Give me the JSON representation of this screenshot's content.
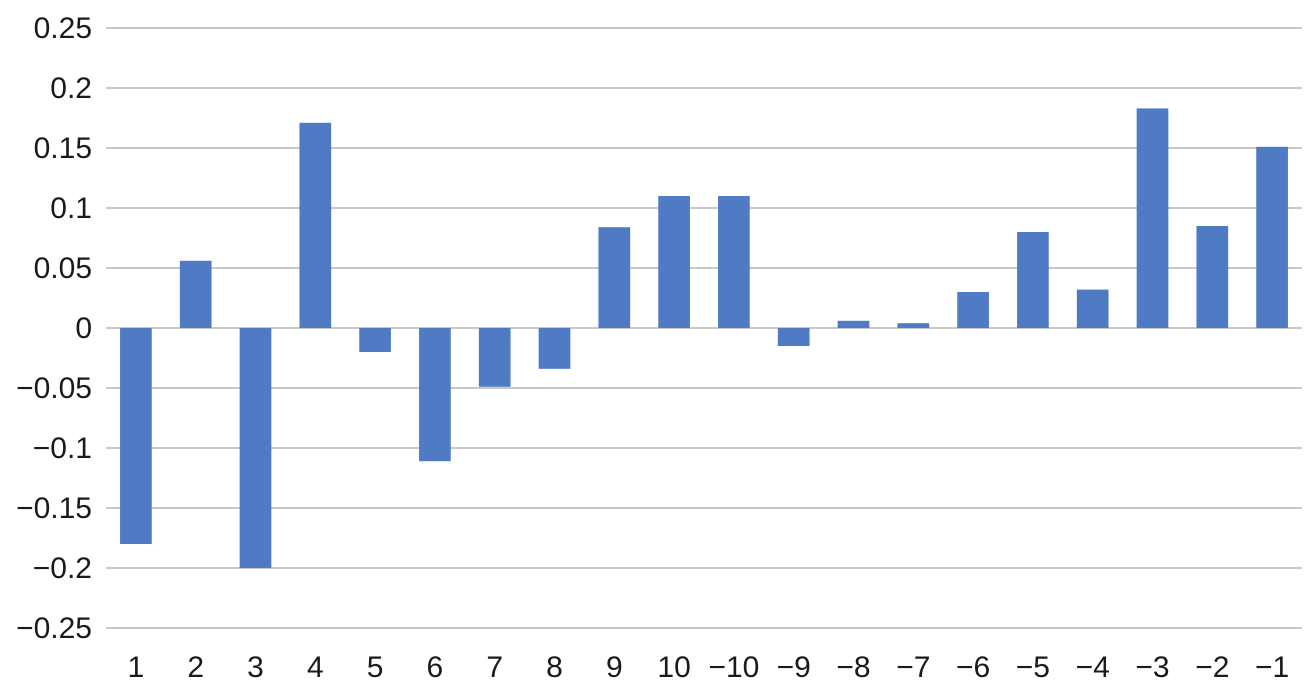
{
  "chart_data": {
    "type": "bar",
    "categories": [
      "1",
      "2",
      "3",
      "4",
      "5",
      "6",
      "7",
      "8",
      "9",
      "10",
      "−10",
      "−9",
      "−8",
      "−7",
      "−6",
      "−5",
      "−4",
      "−3",
      "−2",
      "−1"
    ],
    "values": [
      -0.18,
      0.056,
      -0.2,
      0.171,
      -0.02,
      -0.111,
      -0.049,
      -0.034,
      0.084,
      0.11,
      0.11,
      -0.015,
      0.006,
      0.004,
      0.03,
      0.08,
      0.032,
      0.183,
      0.085,
      0.151
    ],
    "title": "",
    "xlabel": "",
    "ylabel": "",
    "ylim": [
      -0.25,
      0.25
    ],
    "yticks": [
      0.25,
      0.2,
      0.15,
      0.1,
      0.05,
      0,
      -0.05,
      -0.1,
      -0.15,
      -0.2,
      -0.25
    ],
    "ytick_labels": [
      "0.25",
      "0.2",
      "0.15",
      "0.1",
      "0.05",
      "0",
      "−0.05",
      "−0.1",
      "−0.15",
      "−0.2",
      "−0.25"
    ],
    "grid": true,
    "legend": "none",
    "bar_color": "#4f7bc4"
  }
}
